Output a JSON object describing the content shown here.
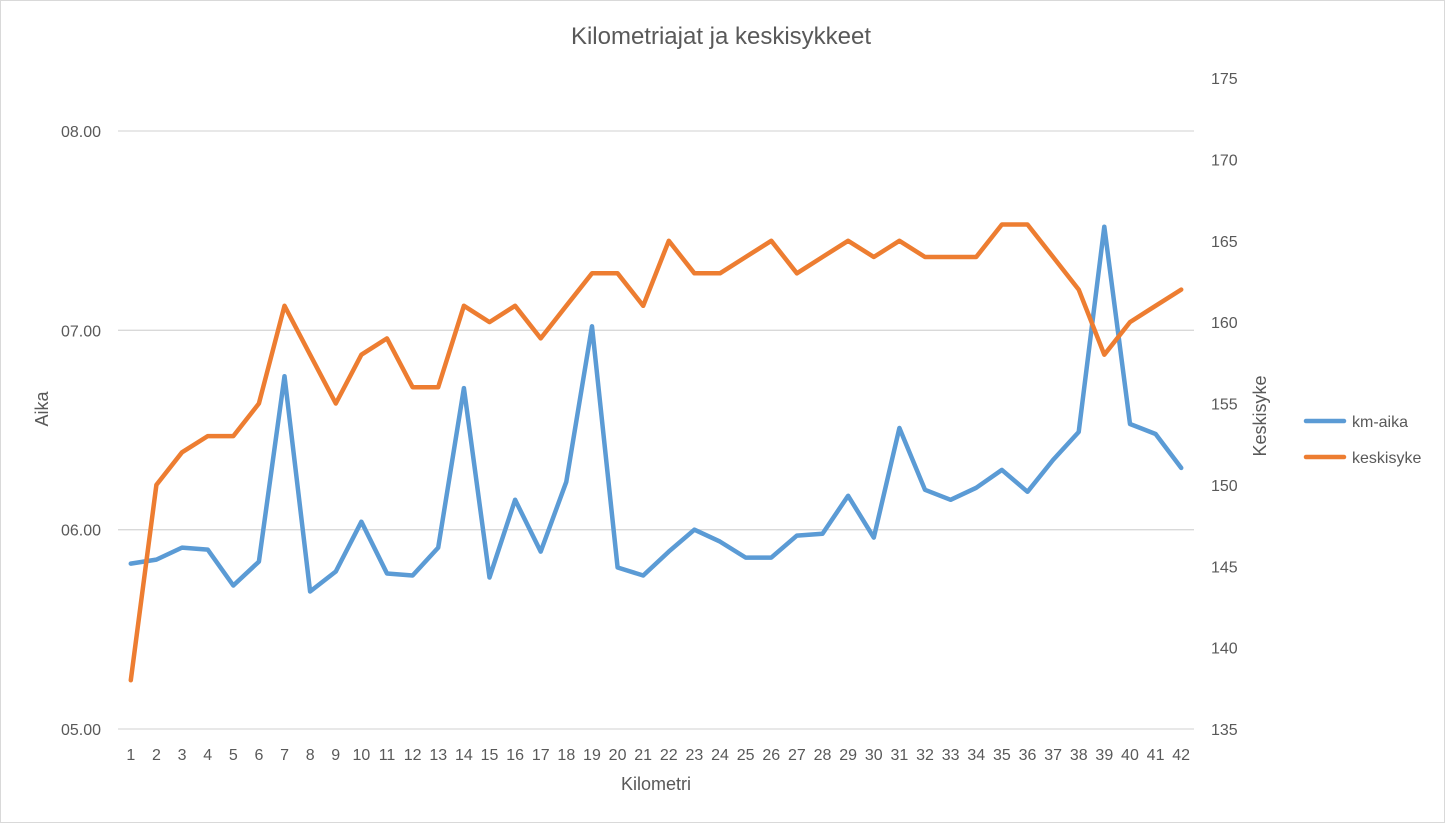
{
  "chart_data": {
    "type": "line",
    "title": "Kilometriajat ja keskisykkeet",
    "xlabel": "Kilometri",
    "ylabel": "Aika",
    "y2label": "Keskisyke",
    "categories": [
      "1",
      "2",
      "3",
      "4",
      "5",
      "6",
      "7",
      "8",
      "9",
      "10",
      "11",
      "12",
      "13",
      "14",
      "15",
      "16",
      "17",
      "18",
      "19",
      "20",
      "21",
      "22",
      "23",
      "24",
      "25",
      "26",
      "27",
      "28",
      "29",
      "30",
      "31",
      "32",
      "33",
      "34",
      "35",
      "36",
      "37",
      "38",
      "39",
      "40",
      "41",
      "42"
    ],
    "ylim": [
      5.0,
      8.0
    ],
    "y_ticks": [
      "05.00",
      "06.00",
      "07.00",
      "08.00"
    ],
    "y2lim": [
      135,
      175
    ],
    "y2_ticks": [
      "135",
      "140",
      "145",
      "150",
      "155",
      "160",
      "165",
      "170",
      "175"
    ],
    "grid": true,
    "legend_position": "right",
    "series": [
      {
        "name": "km-aika",
        "axis": "left",
        "color": "#5b9bd5",
        "values": [
          5.83,
          5.85,
          5.91,
          5.9,
          5.72,
          5.84,
          6.77,
          5.69,
          5.79,
          6.04,
          5.78,
          5.77,
          5.91,
          6.71,
          5.76,
          6.15,
          5.89,
          6.24,
          7.02,
          5.81,
          5.77,
          5.89,
          6.0,
          5.94,
          5.86,
          5.86,
          5.97,
          5.98,
          6.17,
          5.96,
          6.51,
          6.2,
          6.15,
          6.21,
          6.3,
          6.19,
          6.35,
          6.49,
          7.52,
          6.53,
          6.48,
          6.31
        ]
      },
      {
        "name": "keskisyke",
        "axis": "right",
        "color": "#ed7d31",
        "values": [
          138,
          150,
          152,
          153,
          153,
          155,
          161,
          158,
          155,
          158,
          159,
          156,
          156,
          161,
          160,
          161,
          159,
          161,
          163,
          163,
          161,
          165,
          163,
          163,
          164,
          165,
          163,
          164,
          165,
          164,
          165,
          164,
          164,
          164,
          166,
          166,
          164,
          162,
          158,
          160,
          161,
          162
        ]
      }
    ]
  }
}
